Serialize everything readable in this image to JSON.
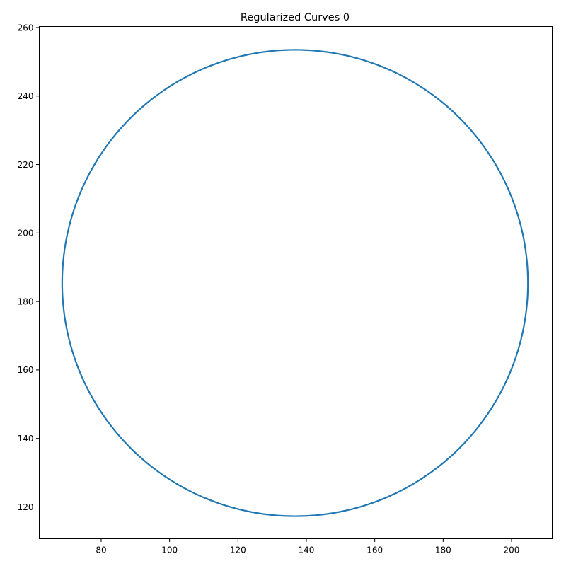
{
  "chart_data": {
    "type": "line",
    "title": "Regularized Curves 0",
    "xlabel": "",
    "ylabel": "",
    "xlim": [
      61.9,
      211.9
    ],
    "ylim": [
      110.7,
      260.3
    ],
    "grid": false,
    "legend": "none",
    "x_ticks": [
      80,
      100,
      120,
      140,
      160,
      180,
      200
    ],
    "y_ticks": [
      120,
      140,
      160,
      180,
      200,
      220,
      240,
      260
    ],
    "series": [
      {
        "shape": "circle",
        "center": [
          136.7,
          185.4
        ],
        "radius": 68.1,
        "color": "#1f77b4"
      }
    ]
  }
}
